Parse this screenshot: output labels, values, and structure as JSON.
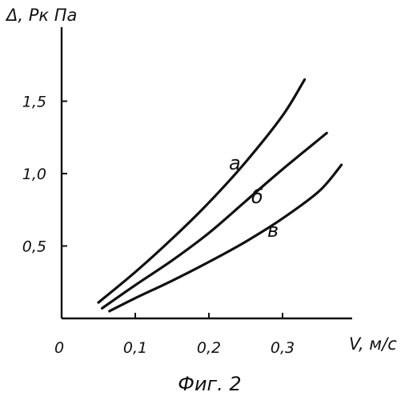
{
  "chart_data": {
    "type": "line",
    "ylabel": "Δ, Рк Па",
    "xlabel": "V, м/с",
    "caption": "Фиг. 2",
    "xlim": [
      0,
      0.4
    ],
    "ylim": [
      0,
      2.0
    ],
    "x_ticks": [
      0,
      0.1,
      0.2,
      0.3
    ],
    "x_tick_labels": [
      "0",
      "0,1",
      "0,2",
      "0,3"
    ],
    "y_ticks": [
      0.5,
      1.0,
      1.5
    ],
    "y_tick_labels": [
      "0,5",
      "1,0",
      "1,5"
    ],
    "grid": false,
    "series": [
      {
        "name": "а",
        "x": [
          0.05,
          0.1,
          0.15,
          0.2,
          0.25,
          0.3,
          0.33
        ],
        "y": [
          0.11,
          0.32,
          0.55,
          0.8,
          1.08,
          1.4,
          1.65
        ]
      },
      {
        "name": "б",
        "x": [
          0.055,
          0.1,
          0.15,
          0.2,
          0.25,
          0.3,
          0.36
        ],
        "y": [
          0.07,
          0.23,
          0.4,
          0.59,
          0.81,
          1.03,
          1.28
        ]
      },
      {
        "name": "в",
        "x": [
          0.065,
          0.1,
          0.15,
          0.2,
          0.25,
          0.3,
          0.35,
          0.38
        ],
        "y": [
          0.05,
          0.14,
          0.26,
          0.39,
          0.53,
          0.69,
          0.88,
          1.06
        ]
      }
    ]
  }
}
